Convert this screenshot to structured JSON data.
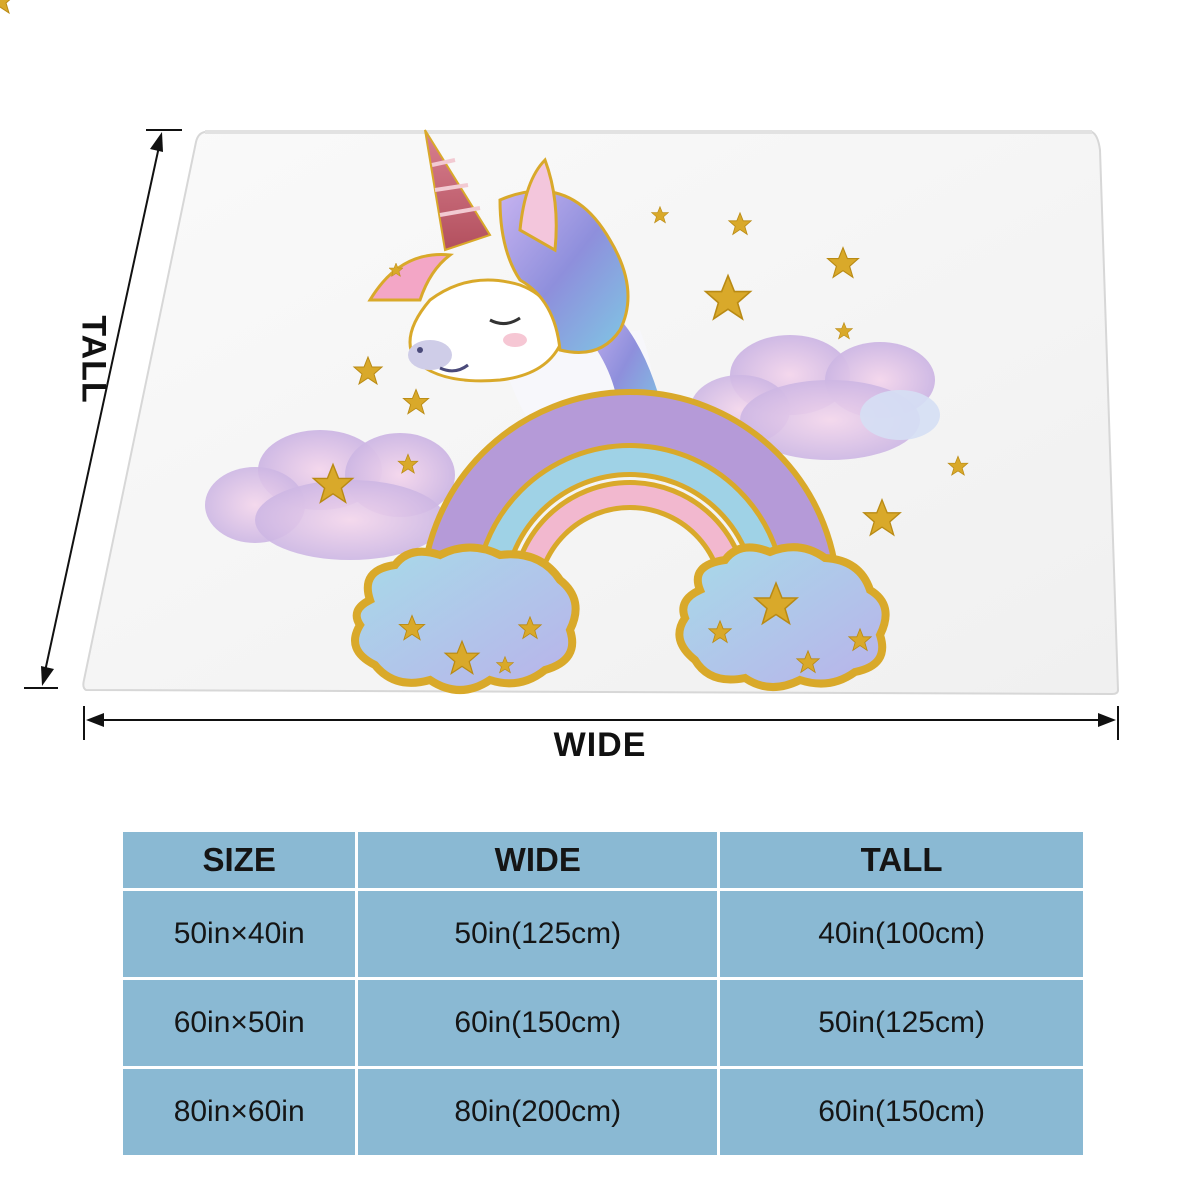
{
  "diagram": {
    "wide_label": "WIDE",
    "tall_label": "TALL"
  },
  "table": {
    "headers": [
      "SIZE",
      "WIDE",
      "TALL"
    ],
    "rows": [
      [
        "50in×40in",
        "50in(125cm)",
        "40in(100cm)"
      ],
      [
        "60in×50in",
        "60in(150cm)",
        "50in(125cm)"
      ],
      [
        "80in×60in",
        "80in(200cm)",
        "60in(150cm)"
      ]
    ]
  },
  "colors": {
    "table_cell": "#8ab9d3",
    "glitter_gold": "#d9a92a",
    "rainbow": [
      "#b59ad8",
      "#9fd2e6",
      "#f2b8cf"
    ]
  },
  "artwork": {
    "subject": "unicorn head with glitter horn above a pastel rainbow with clouds and gold stars",
    "icons": [
      "star-icon",
      "cloud-icon",
      "rainbow-icon",
      "unicorn-icon"
    ]
  }
}
